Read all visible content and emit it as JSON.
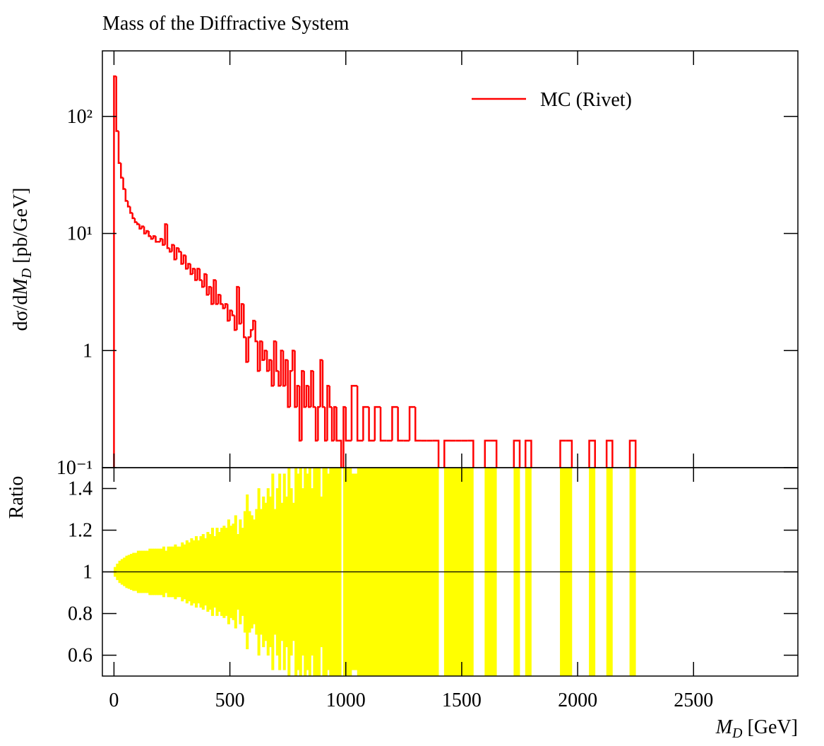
{
  "chart_data": {
    "type": "histogram",
    "title": "Mass of the Diffractive System",
    "ylabel": [
      "dσ/d",
      "M",
      "D",
      " [pb/GeV]"
    ],
    "ratio_ylabel": "Ratio",
    "xlabel": [
      "M",
      "D",
      " [GeV]"
    ],
    "legend": "upper right",
    "log_y": true,
    "xlim": [
      -50,
      2950
    ],
    "xticks": [
      0,
      500,
      1000,
      1500,
      2000,
      2500
    ],
    "ylim": [
      0.1,
      363
    ],
    "yticks": [
      {
        "value": 0.1,
        "label": "10⁻¹"
      },
      1,
      {
        "value": 10,
        "label": "10¹"
      },
      {
        "value": 100,
        "label": "10²"
      }
    ],
    "ratio_ylim": [
      0.5,
      1.5
    ],
    "ratio_yticks": [
      0.6,
      0.8,
      1,
      1.2,
      1.4
    ],
    "ratio_reference": 1,
    "bins": [
      0,
      10,
      20,
      30,
      40,
      50,
      60,
      70,
      80,
      90,
      100,
      110,
      120,
      130,
      140,
      150,
      160,
      170,
      180,
      190,
      200,
      210,
      220,
      230,
      240,
      250,
      260,
      270,
      280,
      290,
      300,
      310,
      320,
      330,
      340,
      350,
      360,
      370,
      380,
      390,
      400,
      410,
      420,
      430,
      440,
      450,
      460,
      470,
      480,
      490,
      500,
      510,
      520,
      530,
      540,
      550,
      560,
      570,
      580,
      590,
      600,
      610,
      620,
      630,
      640,
      650,
      660,
      670,
      680,
      690,
      700,
      710,
      720,
      730,
      740,
      750,
      760,
      770,
      780,
      790,
      800,
      810,
      820,
      830,
      840,
      850,
      860,
      870,
      880,
      890,
      900,
      910,
      920,
      930,
      940,
      950,
      960,
      970,
      980,
      990,
      1000,
      1025,
      1050,
      1075,
      1100,
      1125,
      1150,
      1175,
      1200,
      1225,
      1250,
      1275,
      1300,
      1325,
      1350,
      1375,
      1400,
      1425,
      1450,
      1475,
      1500,
      1525,
      1550,
      1575,
      1600,
      1625,
      1650,
      1675,
      1700,
      1725,
      1750,
      1775,
      1800,
      1825,
      1850,
      1875,
      1900,
      1925,
      1950,
      1975,
      2000,
      2025,
      2050,
      2075,
      2100,
      2125,
      2150,
      2175,
      2200,
      2225,
      2250
    ],
    "series": [
      {
        "name": "MC (Rivet)",
        "color": "#ff0000",
        "band_color": "#ffff00",
        "values": [
          220,
          75,
          40,
          30,
          24,
          19,
          17,
          15,
          13.5,
          12.5,
          12,
          11,
          11.5,
          10,
          10.5,
          9.5,
          9,
          9.5,
          8.5,
          8.5,
          9,
          8,
          12,
          7.5,
          7,
          8,
          6,
          7.5,
          7,
          5.5,
          6.5,
          5,
          5.5,
          4.5,
          5,
          4,
          5,
          4,
          3.5,
          4.5,
          3,
          3.5,
          2.5,
          4,
          2.5,
          3,
          2.5,
          2.3,
          2.5,
          1.8,
          2.2,
          2,
          1.5,
          3.5,
          1.7,
          2.5,
          1.3,
          0.8,
          1.3,
          1.5,
          1.8,
          1.2,
          0.67,
          1.2,
          0.83,
          1,
          0.67,
          0.83,
          0.5,
          1.2,
          0.67,
          0.5,
          1,
          0.5,
          0.83,
          0.33,
          0.67,
          1,
          0.33,
          0.5,
          0.17,
          0.67,
          0.33,
          0.5,
          0.33,
          0.67,
          0.33,
          0.17,
          0.33,
          0.83,
          0.33,
          0.17,
          0.5,
          0.33,
          0.17,
          0.33,
          0.17,
          0.17,
          null,
          0.33,
          0.17,
          0.5,
          0.17,
          0.33,
          0.17,
          0.33,
          0.17,
          0.17,
          0.33,
          0.17,
          0.17,
          0.33,
          0.17,
          0.17,
          0.17,
          0.17,
          null,
          0.17,
          0.17,
          0.17,
          0.17,
          0.17,
          null,
          null,
          0.17,
          0.17,
          null,
          null,
          null,
          0.17,
          null,
          0.17,
          null,
          null,
          null,
          null,
          null,
          0.17,
          0.17,
          null,
          null,
          null,
          0.17,
          null,
          null,
          0.17,
          null,
          null,
          null,
          0.17
        ],
        "errors": [
          0.022,
          0.038,
          0.052,
          0.06,
          0.067,
          0.076,
          0.08,
          0.085,
          0.09,
          0.09,
          0.1,
          0.1,
          0.1,
          0.1,
          0.1,
          0.11,
          0.11,
          0.11,
          0.11,
          0.11,
          0.11,
          0.12,
          0.1,
          0.12,
          0.12,
          0.12,
          0.13,
          0.12,
          0.12,
          0.14,
          0.13,
          0.15,
          0.14,
          0.16,
          0.15,
          0.17,
          0.15,
          0.17,
          0.18,
          0.16,
          0.19,
          0.18,
          0.21,
          0.17,
          0.21,
          0.19,
          0.21,
          0.22,
          0.21,
          0.25,
          0.22,
          0.23,
          0.27,
          0.18,
          0.25,
          0.21,
          0.29,
          0.37,
          0.29,
          0.27,
          0.25,
          0.3,
          0.4,
          0.3,
          0.36,
          0.33,
          0.4,
          0.36,
          0.47,
          0.3,
          0.4,
          0.47,
          0.33,
          0.47,
          0.36,
          0.57,
          0.4,
          0.33,
          0.57,
          0.47,
          0.8,
          0.4,
          0.57,
          0.47,
          0.57,
          0.4,
          0.57,
          0.8,
          0.57,
          0.36,
          0.57,
          0.8,
          0.47,
          0.57,
          0.8,
          0.57,
          0.8,
          0.8,
          null,
          0.57,
          0.8,
          0.47,
          0.8,
          0.57,
          0.8,
          0.57,
          0.8,
          0.8,
          0.57,
          0.8,
          0.8,
          0.57,
          0.8,
          0.8,
          0.8,
          0.8,
          null,
          0.8,
          0.8,
          0.8,
          0.8,
          0.8,
          null,
          null,
          0.8,
          0.8,
          null,
          null,
          null,
          0.8,
          null,
          0.8,
          null,
          null,
          null,
          null,
          null,
          0.8,
          0.8,
          null,
          null,
          null,
          0.8,
          null,
          null,
          0.8,
          null,
          null,
          null,
          0.8
        ]
      }
    ]
  }
}
